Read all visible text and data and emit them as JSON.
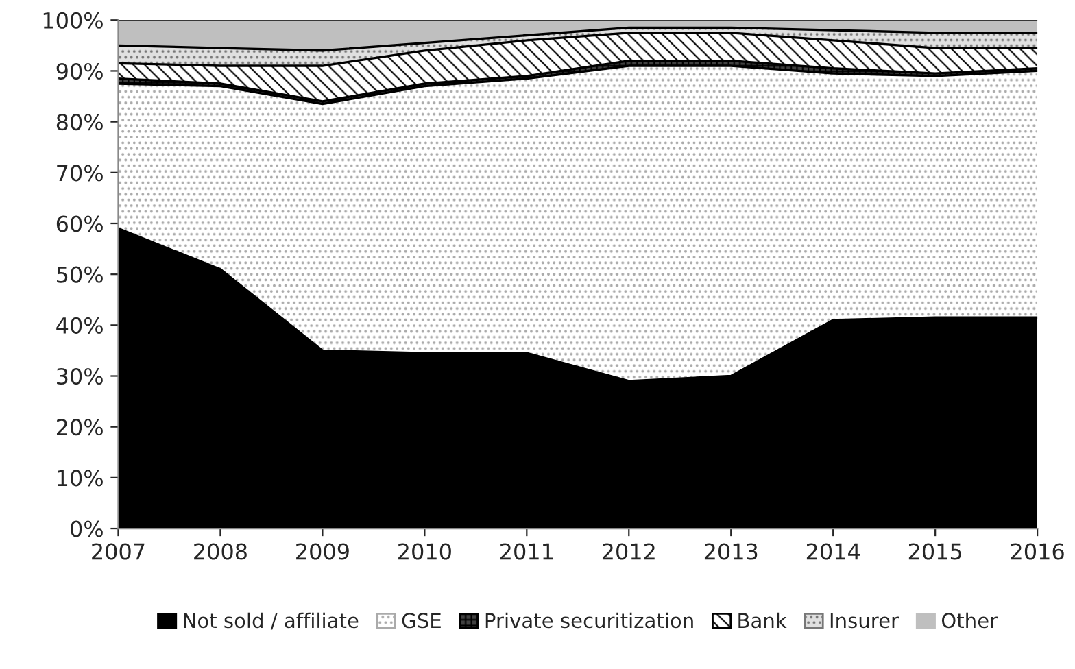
{
  "chart_data": {
    "type": "area",
    "stacked": true,
    "x": [
      2007,
      2008,
      2009,
      2010,
      2011,
      2012,
      2013,
      2014,
      2015,
      2016
    ],
    "series": [
      {
        "name": "Not sold / affiliate",
        "color": "#000000",
        "values": [
          59,
          51,
          35,
          34.5,
          34.5,
          29,
          30,
          41,
          41.5,
          41.5
        ]
      },
      {
        "name": "GSE",
        "color": "#ffffff",
        "values": [
          28.5,
          36,
          48.5,
          52.5,
          54,
          62,
          61,
          48.5,
          47.5,
          48.5
        ]
      },
      {
        "name": "Private securitization",
        "color": "#404040",
        "values": [
          1,
          0.5,
          0.5,
          0.5,
          0.5,
          1,
          1,
          1,
          0.5,
          0.5
        ]
      },
      {
        "name": "Bank",
        "color": "#ffffff",
        "values": [
          3,
          3.5,
          7,
          6.5,
          7,
          5.5,
          5.5,
          5.5,
          5,
          4
        ]
      },
      {
        "name": "Insurer",
        "color": "#e0e0e0",
        "values": [
          3.5,
          3.5,
          3,
          1.5,
          1,
          1,
          1,
          2,
          3,
          3
        ]
      },
      {
        "name": "Other",
        "color": "#bfbfbf",
        "values": [
          5,
          5.5,
          6,
          4.5,
          3,
          1.5,
          1.5,
          2,
          2.5,
          2.5
        ]
      }
    ],
    "xlim": [
      2007,
      2016
    ],
    "xticks": [
      2007,
      2008,
      2009,
      2010,
      2011,
      2012,
      2013,
      2014,
      2015,
      2016
    ],
    "ylim": [
      0,
      100
    ],
    "yticks": [
      {
        "value": 0,
        "label": "0%"
      },
      {
        "value": 10,
        "label": "10%"
      },
      {
        "value": 20,
        "label": "20%"
      },
      {
        "value": 30,
        "label": "30%"
      },
      {
        "value": 40,
        "label": "40%"
      },
      {
        "value": 50,
        "label": "50%"
      },
      {
        "value": 60,
        "label": "60%"
      },
      {
        "value": 70,
        "label": "70%"
      },
      {
        "value": 80,
        "label": "80%"
      },
      {
        "value": 90,
        "label": "90%"
      },
      {
        "value": 100,
        "label": "100%"
      }
    ],
    "grid": false,
    "legend": "bottom"
  }
}
